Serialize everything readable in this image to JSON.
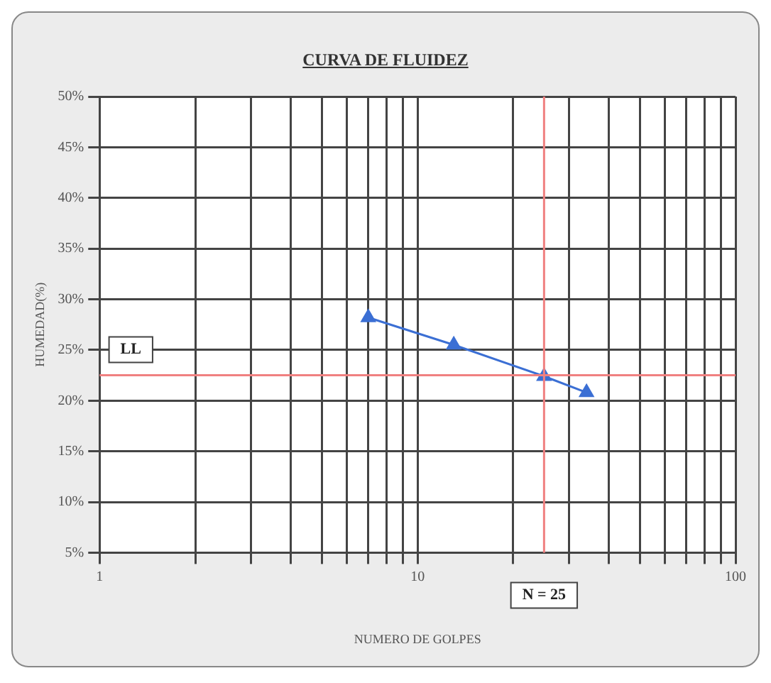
{
  "chart_data": {
    "type": "line",
    "title": "CURVA DE FLUIDEZ",
    "xlabel": "NUMERO DE GOLPES",
    "ylabel": "HUMEDAD(%)",
    "x": [
      7,
      13,
      25,
      34
    ],
    "series": [
      {
        "color": "#3b6fd4",
        "values": [
          28.2,
          25.5,
          22.4,
          20.8
        ]
      }
    ],
    "log": "x",
    "xlim": [
      1,
      100
    ],
    "xticks": [
      1,
      {
        "value": 2,
        "label": null
      },
      {
        "value": 3,
        "label": null
      },
      {
        "value": 4,
        "label": null
      },
      {
        "value": 5,
        "label": null
      },
      {
        "value": 6,
        "label": null
      },
      {
        "value": 7,
        "label": null
      },
      {
        "value": 8,
        "label": null
      },
      {
        "value": 9,
        "label": null
      },
      10,
      {
        "value": 20,
        "label": null
      },
      {
        "value": 30,
        "label": null
      },
      {
        "value": 40,
        "label": null
      },
      {
        "value": 50,
        "label": null
      },
      {
        "value": 60,
        "label": null
      },
      {
        "value": 70,
        "label": null
      },
      {
        "value": 80,
        "label": null
      },
      {
        "value": 90,
        "label": null
      },
      100
    ],
    "ylim": [
      5,
      50
    ],
    "yticks": [
      {
        "value": 5,
        "label": "5%"
      },
      {
        "value": 10,
        "label": "10%"
      },
      {
        "value": 15,
        "label": "15%"
      },
      {
        "value": 20,
        "label": "20%"
      },
      {
        "value": 25,
        "label": "25%"
      },
      {
        "value": 30,
        "label": "30%"
      },
      {
        "value": 35,
        "label": "35%"
      },
      {
        "value": 40,
        "label": "40%"
      },
      {
        "value": 45,
        "label": "45%"
      },
      {
        "value": 50,
        "label": "50%"
      }
    ],
    "grid": true,
    "marker": "triangle",
    "line_style": "solid",
    "legend": false,
    "ref_lines": [
      {
        "axis": "y",
        "value": 22.5,
        "label": "LL",
        "color": "#f08080"
      },
      {
        "axis": "x",
        "value": 25,
        "label": "N = 25",
        "color": "#f08080"
      }
    ]
  }
}
